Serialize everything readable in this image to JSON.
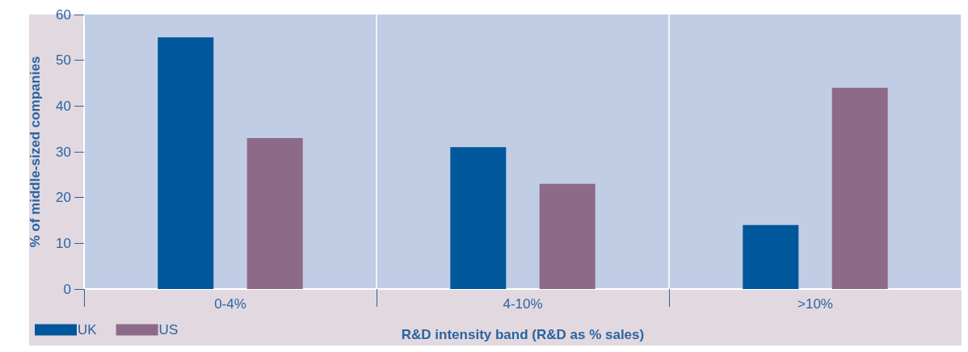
{
  "chart_data": {
    "type": "bar",
    "xlabel": "R&D intensity band (R&D as % sales)",
    "ylabel": "% of middle-sized companies",
    "categories": [
      "0-4%",
      "4-10%",
      ">10%"
    ],
    "series": [
      {
        "name": "UK",
        "color": "#00579b",
        "values": [
          55,
          31,
          14
        ]
      },
      {
        "name": "US",
        "color": "#8d6a88",
        "values": [
          33,
          23,
          44
        ]
      }
    ],
    "ylim": [
      0,
      60
    ],
    "yticks": [
      0,
      10,
      20,
      30,
      40,
      50,
      60
    ],
    "grid": "x",
    "legend": "bottom left"
  }
}
